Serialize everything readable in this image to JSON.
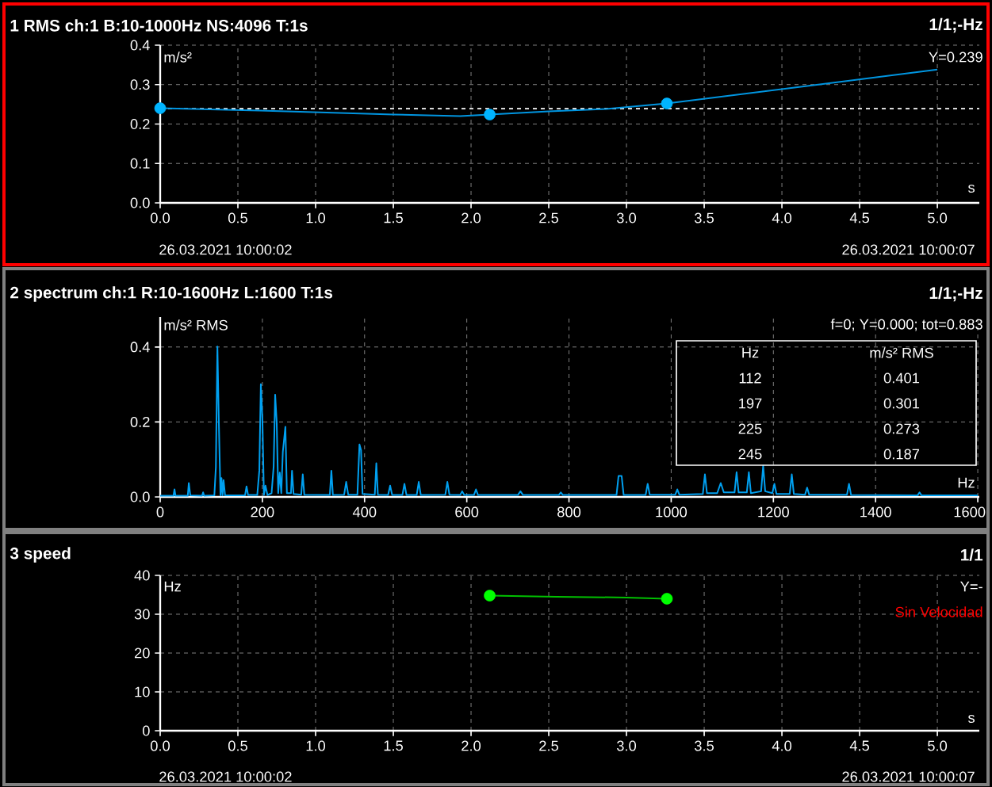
{
  "chart_data": [
    {
      "type": "line",
      "title": "1 RMS ch:1 B:10-1000Hz NS:4096 T:1s",
      "subtitle": "1/1;-Hz",
      "ylabel": "m/s²",
      "xlabel": "s",
      "xlim": [
        0,
        5.27
      ],
      "ylim": [
        0,
        0.4
      ],
      "xticks": [
        {
          "value": 0,
          "label": "0.0"
        },
        0.5,
        {
          "value": 1,
          "label": "1.0"
        },
        1.5,
        {
          "value": 2,
          "label": "2.0"
        },
        2.5,
        {
          "value": 3,
          "label": "3.0"
        },
        3.5,
        {
          "value": 4,
          "label": "4.0"
        },
        4.5,
        {
          "value": 5,
          "label": "5.0"
        }
      ],
      "yticks": [
        {
          "value": 0,
          "label": "0.0"
        },
        0.1,
        0.2,
        0.3,
        0.4
      ],
      "grid": true,
      "series": [
        {
          "color": "#0095e0",
          "x": [
            0,
            0.64,
            1.5,
            1.93,
            2.12,
            2.5,
            2.87,
            3.26,
            5.0
          ],
          "values": [
            0.24,
            0.234,
            0.224,
            0.22,
            0.224,
            0.232,
            0.238,
            0.252,
            0.338
          ]
        },
        {
          "type": "scatter",
          "marker": "circle",
          "color": "#00b4ff",
          "x": [
            0,
            2.12,
            3.26
          ],
          "values": [
            0.24,
            0.224,
            0.252
          ]
        }
      ],
      "ref_lines": [
        {
          "axis": "y",
          "value": 0.239,
          "color": "#ffffff",
          "line_style": "dashed"
        }
      ],
      "annotations": [
        "Y=0.239",
        "26.03.2021 10:00:02",
        "26.03.2021 10:00:07"
      ]
    },
    {
      "type": "line",
      "title": "2 spectrum ch:1 R:10-1600Hz L:1600 T:1s",
      "subtitle": "1/1;-Hz",
      "ylabel": "m/s² RMS",
      "xlabel": "Hz",
      "xlim": [
        0,
        1603
      ],
      "ylim": [
        0,
        0.48
      ],
      "xticks": [
        0,
        200,
        400,
        600,
        800,
        1000,
        1200,
        1400,
        1600
      ],
      "yticks": [
        {
          "value": 0,
          "label": "0.0"
        },
        0.2,
        0.4
      ],
      "grid": true,
      "series": [
        {
          "color": "#00a0f0",
          "x": [
            0,
            26,
            28,
            30,
            54,
            56,
            59,
            82,
            84,
            86,
            106,
            109,
            112,
            115,
            118,
            120,
            122,
            124,
            127,
            166,
            169,
            172,
            190,
            194,
            197,
            200,
            203,
            206,
            210,
            218,
            222,
            225,
            228,
            231,
            234,
            237,
            240,
            245,
            248,
            256,
            258,
            261,
            276,
            279,
            282,
            332,
            335,
            338,
            360,
            364,
            368,
            386,
            390,
            393,
            396,
            420,
            423,
            426,
            446,
            450,
            454,
            474,
            478,
            482,
            502,
            506,
            510,
            558,
            562,
            566,
            587,
            591,
            595,
            614,
            618,
            622,
            700,
            705,
            710,
            780,
            784,
            788,
            893,
            897,
            903,
            907,
            950,
            954,
            958,
            1008,
            1012,
            1016,
            1062,
            1066,
            1070,
            1090,
            1097,
            1103,
            1124,
            1128,
            1132,
            1148,
            1152,
            1156,
            1176,
            1180,
            1184,
            1198,
            1202,
            1206,
            1232,
            1236,
            1240,
            1262,
            1266,
            1270,
            1344,
            1348,
            1352,
            1482,
            1486,
            1490,
            1600
          ],
          "values": [
            0.003,
            0.003,
            0.02,
            0.003,
            0.003,
            0.037,
            0.004,
            0.003,
            0.012,
            0.003,
            0.004,
            0.08,
            0.401,
            0.186,
            0.004,
            0.05,
            0.004,
            0.045,
            0.004,
            0.004,
            0.028,
            0.005,
            0.005,
            0.07,
            0.301,
            0.21,
            0.005,
            0.03,
            0.005,
            0.01,
            0.08,
            0.273,
            0.2,
            0.01,
            0.065,
            0.01,
            0.12,
            0.187,
            0.01,
            0.01,
            0.07,
            0.008,
            0.006,
            0.06,
            0.006,
            0.005,
            0.07,
            0.005,
            0.006,
            0.04,
            0.006,
            0.006,
            0.14,
            0.125,
            0.008,
            0.006,
            0.09,
            0.006,
            0.005,
            0.03,
            0.005,
            0.005,
            0.035,
            0.005,
            0.005,
            0.04,
            0.005,
            0.006,
            0.04,
            0.006,
            0.005,
            0.015,
            0.005,
            0.005,
            0.02,
            0.005,
            0.005,
            0.015,
            0.005,
            0.005,
            0.012,
            0.005,
            0.005,
            0.056,
            0.056,
            0.005,
            0.005,
            0.035,
            0.006,
            0.006,
            0.02,
            0.006,
            0.008,
            0.06,
            0.01,
            0.01,
            0.037,
            0.012,
            0.012,
            0.066,
            0.012,
            0.012,
            0.066,
            0.01,
            0.015,
            0.083,
            0.015,
            0.01,
            0.035,
            0.008,
            0.008,
            0.06,
            0.008,
            0.006,
            0.025,
            0.006,
            0.006,
            0.035,
            0.005,
            0.004,
            0.012,
            0.004,
            0.004
          ]
        }
      ],
      "annotations": [
        "f=0; Y=0.000; tot=0.883",
        "Hz",
        "m/s² RMS",
        "112",
        "0.401",
        "197",
        "0.301",
        "225",
        "0.273",
        "245",
        "0.187"
      ]
    },
    {
      "type": "line",
      "title": "3 speed",
      "subtitle": "1/1",
      "ylabel": "Hz",
      "xlabel": "s",
      "xlim": [
        0,
        5.27
      ],
      "ylim": [
        0,
        40
      ],
      "xticks": [
        {
          "value": 0,
          "label": "0.0"
        },
        0.5,
        {
          "value": 1,
          "label": "1.0"
        },
        1.5,
        {
          "value": 2,
          "label": "2.0"
        },
        2.5,
        {
          "value": 3,
          "label": "3.0"
        },
        3.5,
        {
          "value": 4,
          "label": "4.0"
        },
        4.5,
        {
          "value": 5,
          "label": "5.0"
        }
      ],
      "yticks": [
        0,
        10,
        20,
        30,
        40
      ],
      "grid": true,
      "series": [
        {
          "color": "#00c000",
          "x": [
            2.12,
            2.55,
            3.0,
            3.26
          ],
          "values": [
            34.8,
            34.5,
            34.3,
            34.0
          ]
        },
        {
          "type": "scatter",
          "marker": "circle",
          "color": "#00ff00",
          "x": [
            2.12,
            3.26
          ],
          "values": [
            34.8,
            34.0
          ]
        }
      ],
      "annotations": [
        "Y=-",
        "Sin Velocidad",
        "26.03.2021 10:00:02",
        "26.03.2021 10:00:07"
      ]
    }
  ]
}
